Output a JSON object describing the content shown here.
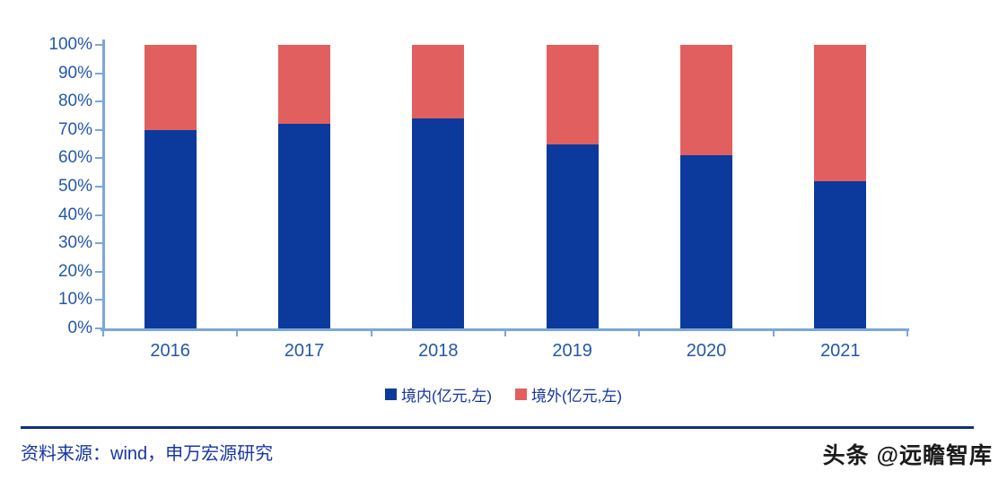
{
  "chart_data": {
    "type": "bar",
    "variant": "stacked-100-percent",
    "title": "",
    "xlabel": "",
    "ylabel": "",
    "categories": [
      "2016",
      "2017",
      "2018",
      "2019",
      "2020",
      "2021"
    ],
    "series": [
      {
        "name": "境内(亿元,左)",
        "color": "#0B3A9C",
        "values_pct": [
          70,
          72,
          74,
          65,
          61,
          52
        ]
      },
      {
        "name": "境外(亿元,左)",
        "color": "#E25F5F",
        "values_pct": [
          30,
          28,
          26,
          35,
          39,
          48
        ]
      }
    ],
    "ylim": [
      0,
      100
    ],
    "ytick_step": 10,
    "ytick_labels": [
      "0%",
      "10%",
      "20%",
      "30%",
      "40%",
      "50%",
      "60%",
      "70%",
      "80%",
      "90%",
      "100%"
    ],
    "grid": false,
    "legend_position": "bottom"
  },
  "legend": {
    "items": [
      {
        "label": "境内(亿元,左)",
        "swatch_color": "#0B3A9C"
      },
      {
        "label": "境外(亿元,左)",
        "swatch_color": "#E25F5F"
      }
    ]
  },
  "footer": {
    "source_text": "资料来源：wind，申万宏源研究",
    "watermark_text": "头条 @远瞻智库"
  },
  "colors": {
    "bar_domestic": "#0B3A9C",
    "bar_overseas": "#E25F5F",
    "axis_line": "#7AA6DC",
    "tick_label_text": "#2457A9",
    "legend_text": "#16339E",
    "footer_text": "#1736A4",
    "footer_rule": "#10307F",
    "watermark_text": "#1A1A1A"
  }
}
